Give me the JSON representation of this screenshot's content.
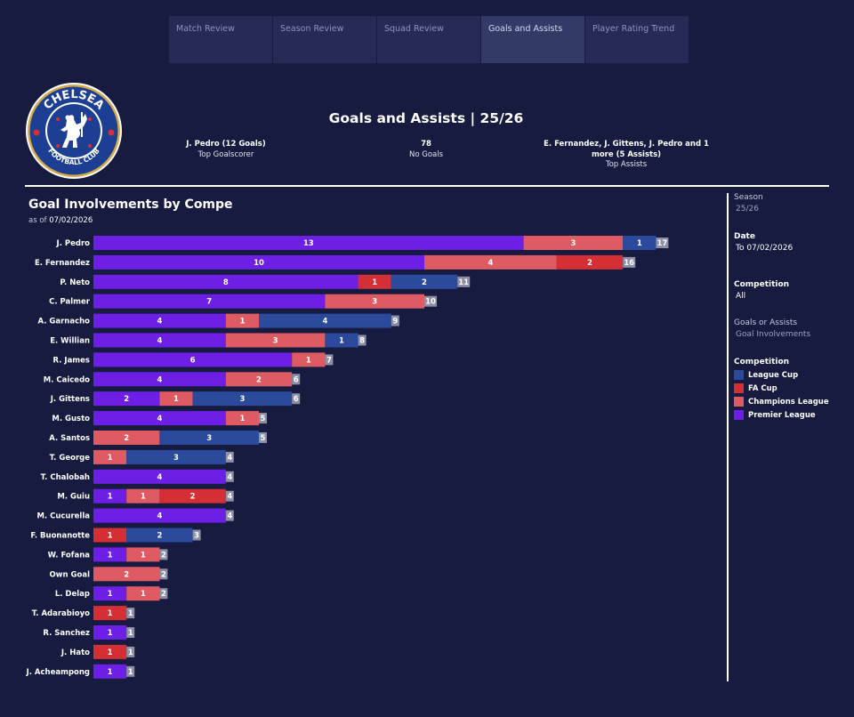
{
  "tabs": [
    "Match Review",
    "Season Review",
    "Squad Review",
    "Goals and Assists",
    "Player Rating Trend"
  ],
  "active_tab": 3,
  "logo": {
    "top_text": "CHELSEA",
    "bottom_text": "FOOTBALL CLUB"
  },
  "header": {
    "title": "Goals and Assists | 25/26"
  },
  "kpis": [
    {
      "value": "J. Pedro (12 Goals)",
      "label": "Top Goalscorer"
    },
    {
      "value": "78",
      "label": "No Goals"
    },
    {
      "value": "E. Fernandez, J. Gittens, J. Pedro and 1 more (5 Assists)",
      "label": "Top Assists"
    }
  ],
  "chart_section": {
    "title": "Goal Involvements by Compe",
    "asof_prefix": "as of",
    "asof_date": "07/02/2026"
  },
  "filters": {
    "season": {
      "label": "Season",
      "value": "25/26"
    },
    "date": {
      "label": "Date",
      "value": "To 07/02/2026"
    },
    "competition": {
      "label": "Competition",
      "value": "All"
    },
    "goals_or_assists": {
      "label": "Goals or Assists",
      "value": "Goal Involvements"
    },
    "legend_title": "Competition"
  },
  "chart_data": {
    "type": "bar",
    "orientation": "horizontal",
    "stacked": true,
    "title": "Goal Involvements by Compe",
    "categories": [
      "J. Pedro",
      "E. Fernandez",
      "P. Neto",
      "C. Palmer",
      "A. Garnacho",
      "E. Willian",
      "R. James",
      "M. Caicedo",
      "J. Gittens",
      "M. Gusto",
      "A. Santos",
      "T. George",
      "T. Chalobah",
      "M. Guiu",
      "M. Cucurella",
      "F. Buonanotte",
      "W. Fofana",
      "Own Goal",
      "L. Delap",
      "T. Adarabioyo",
      "R. Sanchez",
      "J. Hato",
      "J. Acheampong"
    ],
    "series": [
      {
        "name": "Premier League",
        "color": "#6d1fe6",
        "values": [
          13,
          10,
          8,
          7,
          4,
          4,
          6,
          4,
          2,
          4,
          0,
          0,
          4,
          1,
          4,
          0,
          1,
          0,
          1,
          0,
          1,
          0,
          1
        ]
      },
      {
        "name": "Champions League",
        "color": "#df5b63",
        "values": [
          3,
          4,
          0,
          3,
          1,
          3,
          1,
          2,
          1,
          1,
          2,
          1,
          0,
          1,
          0,
          0,
          1,
          2,
          1,
          0,
          0,
          0,
          0
        ]
      },
      {
        "name": "FA Cup",
        "color": "#d42f35",
        "values": [
          0,
          2,
          1,
          0,
          0,
          0,
          0,
          0,
          0,
          0,
          0,
          0,
          0,
          2,
          0,
          1,
          0,
          0,
          0,
          1,
          0,
          1,
          0
        ]
      },
      {
        "name": "League Cup",
        "color": "#2b4a9b",
        "values": [
          1,
          0,
          2,
          0,
          4,
          1,
          0,
          0,
          3,
          0,
          3,
          3,
          0,
          0,
          0,
          2,
          0,
          0,
          0,
          0,
          0,
          0,
          0
        ]
      }
    ],
    "totals": [
      17,
      16,
      11,
      10,
      9,
      8,
      7,
      6,
      6,
      5,
      5,
      4,
      4,
      4,
      4,
      3,
      2,
      2,
      2,
      1,
      1,
      1,
      1
    ],
    "legend_order": [
      "League Cup",
      "FA Cup",
      "Champions League",
      "Premier League"
    ],
    "legend_position": "right",
    "total_label_color": "#8c8fa6",
    "grid": false
  }
}
